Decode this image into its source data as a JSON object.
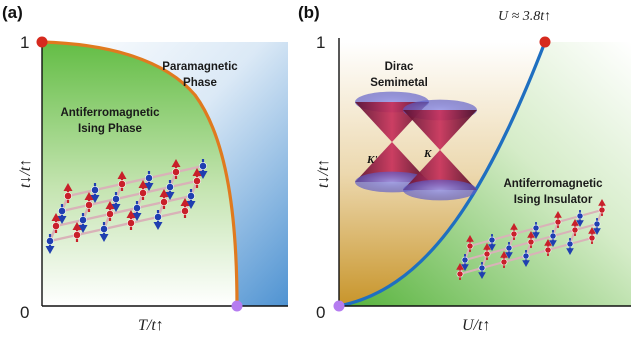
{
  "panel_a": {
    "letter": "(a)",
    "y_tick_top": "1",
    "y_tick_bottom": "0",
    "y_label": "t↓/t↑",
    "x_label": "T/t↑",
    "phase_para_line1": "Paramagnetic",
    "phase_para_line2": "Phase",
    "phase_afm_line1": "Antiferromagnetic",
    "phase_afm_line2": "Ising Phase"
  },
  "panel_b": {
    "letter": "(b)",
    "y_tick_top": "1",
    "y_tick_bottom": "0",
    "y_label": "t↓/t↑",
    "x_label": "U/t↑",
    "marker_label": "U ≈ 3.8t↑",
    "phase_dirac_line1": "Dirac",
    "phase_dirac_line2": "Semimetal",
    "phase_afm_line1": "Antiferromagnetic",
    "phase_afm_line2": "Ising Insulator",
    "cone_left_label": "K'",
    "cone_right_label": "K"
  },
  "colors": {
    "afm_green": "#6cc24a",
    "para_blue": "#4a90d0",
    "dirac_gold": "#c89a30",
    "boundary_orange": "#e07a1f",
    "boundary_blue": "#1f6fc0",
    "marker_red": "#d62a1e",
    "marker_violet": "#b57cf0",
    "spin_up_red": "#c8202a",
    "spin_down_blue": "#1f3fb0"
  }
}
